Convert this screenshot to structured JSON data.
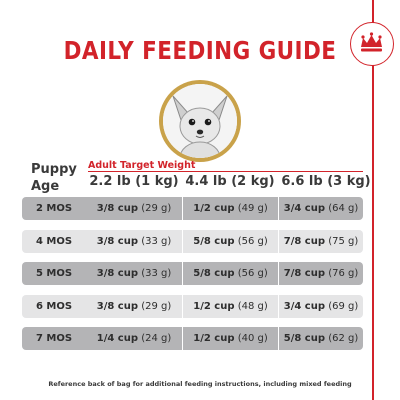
{
  "title": "DAILY FEEDING GUIDE",
  "brand": {
    "icon": "crown-icon",
    "color": "#d2232a"
  },
  "image": {
    "icon": "chihuahua-puppy-icon",
    "ring_color": "#c9a24a"
  },
  "table": {
    "row_header": "Puppy Age",
    "group_header": "Adult Target Weight",
    "columns": [
      "2.2 lb (1 kg)",
      "4.4 lb (2 kg)",
      "6.6 lb (3 kg)"
    ],
    "rows": [
      {
        "age": "2 MOS",
        "values": [
          {
            "cups": "3/8 cup",
            "grams": "(29 g)"
          },
          {
            "cups": "1/2 cup",
            "grams": "(49 g)"
          },
          {
            "cups": "3/4 cup",
            "grams": "(64 g)"
          }
        ]
      },
      {
        "age": "4 MOS",
        "values": [
          {
            "cups": "3/8 cup",
            "grams": "(33 g)"
          },
          {
            "cups": "5/8 cup",
            "grams": "(56 g)"
          },
          {
            "cups": "7/8 cup",
            "grams": "(75 g)"
          }
        ]
      },
      {
        "age": "5 MOS",
        "values": [
          {
            "cups": "3/8 cup",
            "grams": "(33 g)"
          },
          {
            "cups": "5/8 cup",
            "grams": "(56 g)"
          },
          {
            "cups": "7/8 cup",
            "grams": "(76 g)"
          }
        ]
      },
      {
        "age": "6 MOS",
        "values": [
          {
            "cups": "3/8 cup",
            "grams": "(29 g)"
          },
          {
            "cups": "1/2 cup",
            "grams": "(48 g)"
          },
          {
            "cups": "3/4 cup",
            "grams": "(69 g)"
          }
        ]
      },
      {
        "age": "7 MOS",
        "values": [
          {
            "cups": "1/4 cup",
            "grams": "(24 g)"
          },
          {
            "cups": "1/2 cup",
            "grams": "(40 g)"
          },
          {
            "cups": "5/8 cup",
            "grams": "(62 g)"
          }
        ]
      }
    ]
  },
  "footnote": "Reference back of bag for additional feeding instructions, including mixed feeding",
  "colors": {
    "accent": "#d2232a",
    "row_dark": "#b4b4b6",
    "row_light": "#e5e5e6"
  }
}
